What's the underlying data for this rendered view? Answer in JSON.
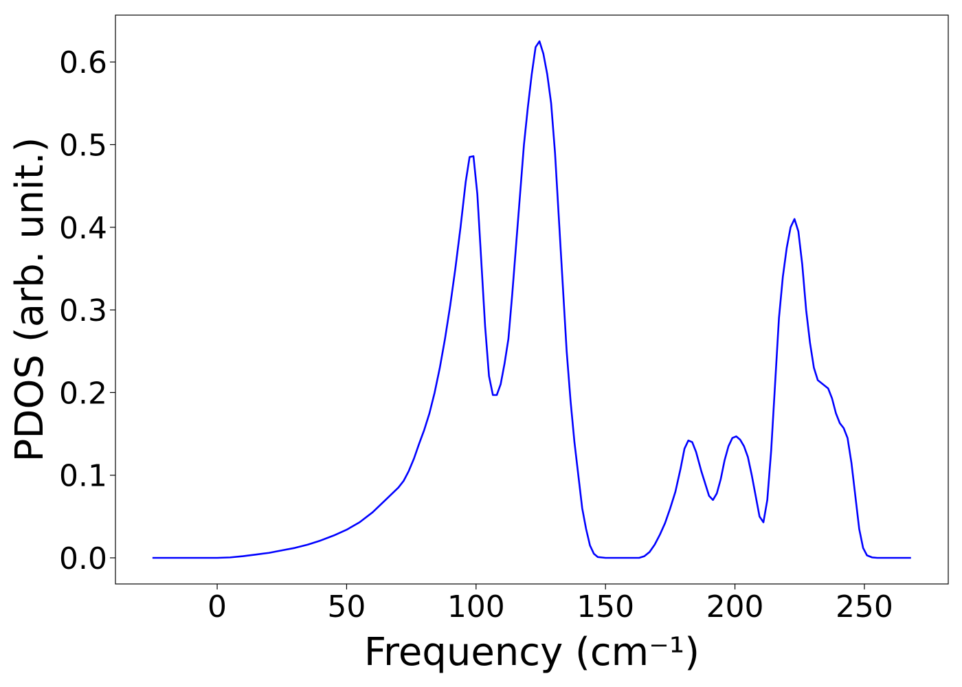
{
  "chart_data": {
    "type": "line",
    "xlabel": "Frequency (cm⁻¹)",
    "ylabel": "PDOS (arb. unit.)",
    "xlim": [
      -39.3,
      282.4
    ],
    "ylim": [
      -0.0316,
      0.6567
    ],
    "xticks": [
      0,
      50,
      100,
      150,
      200,
      250
    ],
    "yticks": [
      {
        "value": 0,
        "label": "0.0"
      },
      0.1,
      0.2,
      0.3,
      0.4,
      0.5,
      0.6
    ],
    "x": [
      -25,
      0,
      5,
      10,
      15,
      20,
      25,
      30,
      35,
      40,
      45,
      50,
      55,
      60,
      65,
      70,
      72,
      74,
      76,
      78,
      80,
      82,
      84,
      86,
      88,
      90,
      92,
      94,
      96,
      97.5,
      99,
      100.5,
      102,
      103.5,
      105,
      106.5,
      108,
      109.5,
      111,
      112.5,
      114,
      115.5,
      117,
      118.5,
      120,
      121.5,
      123,
      124.5,
      126,
      127.5,
      129,
      130.5,
      132,
      133.5,
      135,
      136.5,
      138,
      139.5,
      141,
      142.5,
      144,
      145.5,
      147,
      150,
      163,
      165,
      167,
      169,
      171,
      173,
      175,
      177,
      179,
      180.5,
      182,
      183.5,
      185,
      187,
      189,
      190,
      191.5,
      193,
      194.5,
      196,
      197.5,
      199,
      200.5,
      202,
      203.5,
      205,
      206.5,
      208,
      209.5,
      211,
      212.5,
      214,
      215.5,
      217,
      218.5,
      220,
      221.5,
      223,
      224.5,
      226,
      227.5,
      229,
      230.5,
      232,
      234,
      236,
      237.5,
      239,
      240.5,
      242,
      243.5,
      245,
      246.5,
      248,
      249.5,
      251,
      253,
      255,
      268
    ],
    "series": [
      {
        "name": "PDOS",
        "color": "#0000ff",
        "values": [
          0,
          0,
          0.0005,
          0.002,
          0.004,
          0.006,
          0.009,
          0.012,
          0.016,
          0.021,
          0.027,
          0.034,
          0.043,
          0.055,
          0.07,
          0.085,
          0.093,
          0.105,
          0.12,
          0.138,
          0.155,
          0.175,
          0.2,
          0.23,
          0.265,
          0.305,
          0.35,
          0.4,
          0.455,
          0.485,
          0.486,
          0.44,
          0.36,
          0.28,
          0.22,
          0.197,
          0.197,
          0.21,
          0.235,
          0.265,
          0.32,
          0.38,
          0.44,
          0.5,
          0.545,
          0.585,
          0.618,
          0.625,
          0.61,
          0.585,
          0.55,
          0.49,
          0.41,
          0.33,
          0.25,
          0.19,
          0.14,
          0.1,
          0.06,
          0.035,
          0.015,
          0.005,
          0.001,
          0,
          0,
          0.002,
          0.007,
          0.016,
          0.028,
          0.042,
          0.06,
          0.08,
          0.108,
          0.132,
          0.142,
          0.14,
          0.128,
          0.105,
          0.085,
          0.075,
          0.07,
          0.078,
          0.095,
          0.118,
          0.135,
          0.145,
          0.147,
          0.143,
          0.135,
          0.122,
          0.1,
          0.075,
          0.05,
          0.043,
          0.07,
          0.13,
          0.21,
          0.29,
          0.34,
          0.375,
          0.4,
          0.41,
          0.395,
          0.355,
          0.3,
          0.26,
          0.23,
          0.215,
          0.21,
          0.205,
          0.193,
          0.175,
          0.163,
          0.157,
          0.145,
          0.115,
          0.075,
          0.035,
          0.012,
          0.003,
          0.0005,
          0,
          0
        ]
      }
    ]
  }
}
